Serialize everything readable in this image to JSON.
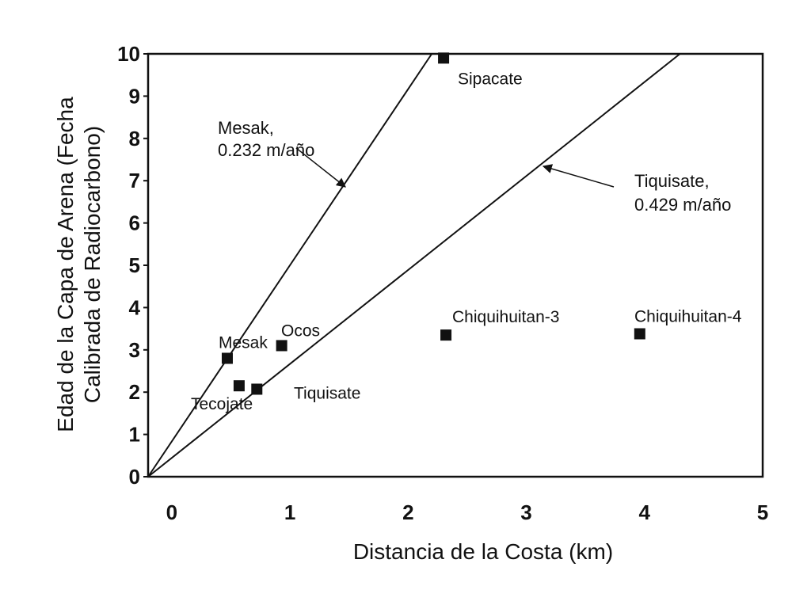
{
  "chart_data": {
    "type": "scatter",
    "xlabel": "Distancia de la Costa (km)",
    "ylabel_lines": [
      "Edad de la Capa de Arena (Fecha",
      "Calibrada de Radiocarbono)"
    ],
    "xlim": [
      -0.2,
      5
    ],
    "ylim": [
      0,
      10
    ],
    "xticks": [
      "0",
      "1",
      "2",
      "3",
      "4",
      "5"
    ],
    "yticks": [
      "0",
      "1",
      "2",
      "3",
      "4",
      "5",
      "6",
      "7",
      "8",
      "9",
      "10"
    ],
    "grid": false,
    "legend": "none",
    "points": [
      {
        "label": "Sipacate",
        "x": 2.3,
        "y": 9.9
      },
      {
        "label": "Mesak",
        "x": 0.47,
        "y": 2.8
      },
      {
        "label": "Ocos",
        "x": 0.93,
        "y": 3.1
      },
      {
        "label": "Tecojate",
        "x": 0.57,
        "y": 2.15
      },
      {
        "label": "Tiquisate",
        "x": 0.72,
        "y": 2.07
      },
      {
        "label": "Chiquihuitan-3",
        "x": 2.32,
        "y": 3.35
      },
      {
        "label": "Chiquihuitan-4",
        "x": 3.96,
        "y": 3.38
      }
    ],
    "lines": [
      {
        "name_lines": [
          "Mesak,",
          "0.232 m/año"
        ],
        "x": [
          -0.2,
          2.2
        ],
        "y": [
          0,
          10
        ]
      },
      {
        "name_lines": [
          "Tiquisate,",
          "0.429 m/año"
        ],
        "x": [
          -0.2,
          4.3
        ],
        "y": [
          0,
          10
        ]
      }
    ]
  }
}
